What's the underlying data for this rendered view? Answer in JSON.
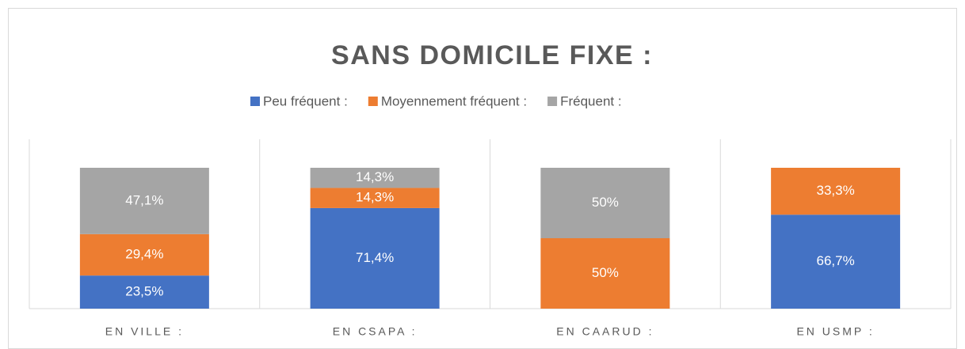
{
  "chart_data": {
    "type": "stacked_bar",
    "title": "SANS DOMICILE FIXE :",
    "categories": [
      "EN VILLE :",
      "EN CSAPA :",
      "EN CAARUD :",
      "EN USMP :"
    ],
    "series": [
      {
        "name": "Peu fréquent :",
        "color": "#4472c4",
        "values": [
          23.5,
          71.4,
          0,
          66.7
        ],
        "value_labels": [
          "23,5%",
          "71,4%",
          null,
          "66,7%"
        ]
      },
      {
        "name": "Moyennement fréquent :",
        "color": "#ed7d31",
        "values": [
          29.4,
          14.3,
          50,
          33.3
        ],
        "value_labels": [
          "29,4%",
          "14,3%",
          "50%",
          "33,3%"
        ]
      },
      {
        "name": "Fréquent :",
        "color": "#a5a5a5",
        "values": [
          47.1,
          14.3,
          50,
          0
        ],
        "value_labels": [
          "47,1%",
          "14,3%",
          "50%",
          null
        ]
      }
    ],
    "ylim": [
      0,
      100
    ],
    "legend": "top"
  }
}
